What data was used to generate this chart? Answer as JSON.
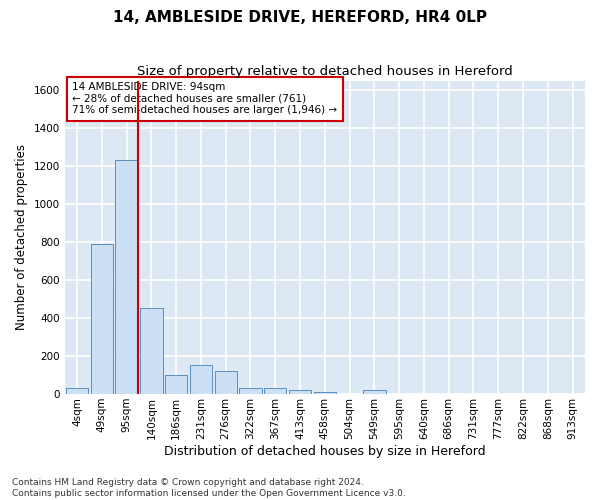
{
  "title": "14, AMBLESIDE DRIVE, HEREFORD, HR4 0LP",
  "subtitle": "Size of property relative to detached houses in Hereford",
  "xlabel": "Distribution of detached houses by size in Hereford",
  "ylabel": "Number of detached properties",
  "bar_labels": [
    "4sqm",
    "49sqm",
    "95sqm",
    "140sqm",
    "186sqm",
    "231sqm",
    "276sqm",
    "322sqm",
    "367sqm",
    "413sqm",
    "458sqm",
    "504sqm",
    "549sqm",
    "595sqm",
    "640sqm",
    "686sqm",
    "731sqm",
    "777sqm",
    "822sqm",
    "868sqm",
    "913sqm"
  ],
  "bar_values": [
    30,
    790,
    1230,
    455,
    100,
    155,
    120,
    30,
    30,
    20,
    10,
    0,
    20,
    0,
    0,
    0,
    0,
    0,
    0,
    0,
    0
  ],
  "bar_color": "#cce0f5",
  "bar_edge_color": "#5a8fc0",
  "property_line_color": "#cc0000",
  "property_line_index": 2,
  "ylim": [
    0,
    1650
  ],
  "yticks": [
    0,
    200,
    400,
    600,
    800,
    1000,
    1200,
    1400,
    1600
  ],
  "annotation_text": "14 AMBLESIDE DRIVE: 94sqm\n← 28% of detached houses are smaller (761)\n71% of semi-detached houses are larger (1,946) →",
  "annotation_box_edgecolor": "#cc0000",
  "annotation_box_facecolor": "white",
  "footer_line1": "Contains HM Land Registry data © Crown copyright and database right 2024.",
  "footer_line2": "Contains public sector information licensed under the Open Government Licence v3.0.",
  "plot_bg_color": "#dce9f5",
  "grid_color": "white",
  "title_fontsize": 11,
  "subtitle_fontsize": 9.5,
  "tick_fontsize": 7.5,
  "ylabel_fontsize": 8.5,
  "xlabel_fontsize": 9,
  "annotation_fontsize": 7.5,
  "footer_fontsize": 6.5
}
